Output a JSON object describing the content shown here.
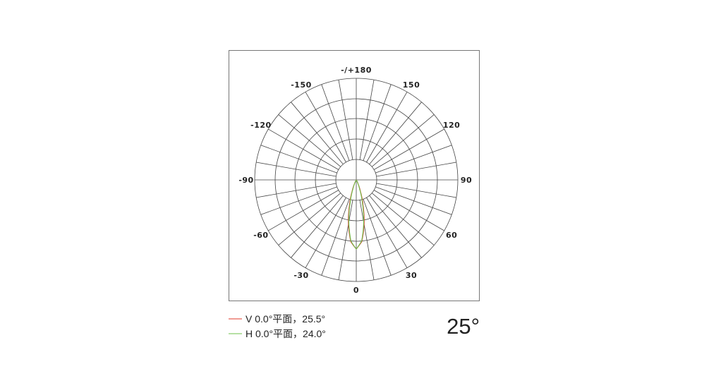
{
  "chart_data": {
    "type": "polar-line",
    "angle_labels": [
      {
        "angle": 0,
        "label": "0"
      },
      {
        "angle": 30,
        "label": "30"
      },
      {
        "angle": 60,
        "label": "60"
      },
      {
        "angle": 90,
        "label": "90"
      },
      {
        "angle": 120,
        "label": "120"
      },
      {
        "angle": 150,
        "label": "150"
      },
      {
        "angle": 180,
        "label": "-/+180"
      },
      {
        "angle": -150,
        "label": "-150"
      },
      {
        "angle": -120,
        "label": "-120"
      },
      {
        "angle": -90,
        "label": "-90"
      },
      {
        "angle": -60,
        "label": "-60"
      },
      {
        "angle": -30,
        "label": "-30"
      }
    ],
    "grid": true,
    "angles": [
      -40,
      -35,
      -30,
      -25,
      -20,
      -15,
      -10,
      -5,
      0,
      5,
      10,
      15,
      20,
      25,
      30,
      35,
      40
    ],
    "series": [
      {
        "name": "V 0.0°平面，25.5°",
        "color": "#e03a2a",
        "values": [
          0,
          0.004,
          0.018,
          0.065,
          0.177,
          0.381,
          0.653,
          0.899,
          1,
          0.899,
          0.653,
          0.381,
          0.177,
          0.065,
          0.018,
          0.004,
          0
        ]
      },
      {
        "name": "H 0.0°平面，24.0°",
        "color": "#6cc04a",
        "values": [
          0,
          0.002,
          0.011,
          0.046,
          0.142,
          0.337,
          0.618,
          0.887,
          1,
          0.887,
          0.618,
          0.337,
          0.142,
          0.046,
          0.011,
          0.002,
          0
        ]
      }
    ],
    "legend_placement": "bottom-left",
    "beam_angle_label": "25°"
  }
}
